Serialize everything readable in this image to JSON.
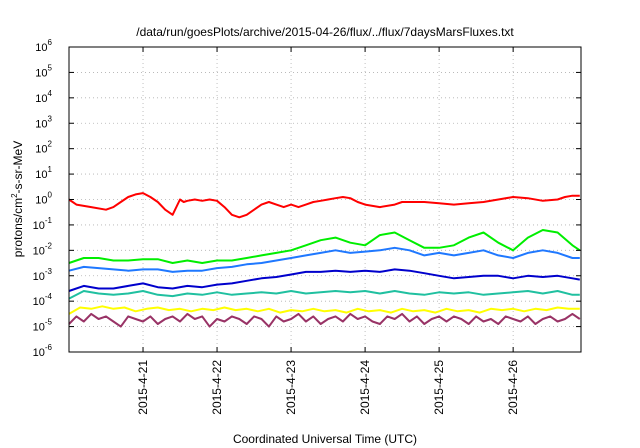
{
  "chart_data": {
    "type": "line",
    "title": "/data/run/goesPlots/archive/2015-04-26/flux/../flux/7daysMarsFluxes.txt",
    "xlabel": "Coordinated Universal Time (UTC)",
    "ylabel": {
      "base": "protons/cm",
      "sup": "2",
      "rest": "-s-sr-MeV"
    },
    "yscale": "log",
    "ylim": [
      -6,
      6
    ],
    "y_ticks": [
      {
        "base": "10",
        "exp": "-6",
        "v": -6
      },
      {
        "base": "10",
        "exp": "-5",
        "v": -5
      },
      {
        "base": "10",
        "exp": "-4",
        "v": -4
      },
      {
        "base": "10",
        "exp": "-3",
        "v": -3
      },
      {
        "base": "10",
        "exp": "-2",
        "v": -2
      },
      {
        "base": "10",
        "exp": "-1",
        "v": -1
      },
      {
        "base": "10",
        "exp": "0",
        "v": 0
      },
      {
        "base": "10",
        "exp": "1",
        "v": 1
      },
      {
        "base": "10",
        "exp": "2",
        "v": 2
      },
      {
        "base": "10",
        "exp": "3",
        "v": 3
      },
      {
        "base": "10",
        "exp": "4",
        "v": 4
      },
      {
        "base": "10",
        "exp": "5",
        "v": 5
      },
      {
        "base": "10",
        "exp": "6",
        "v": 6
      }
    ],
    "x_range_days": [
      "2015-04-20 00:00",
      "2015-04-26 22:00"
    ],
    "x_ticks": [
      "2015-4-21",
      "2015-4-22",
      "2015-4-23",
      "2015-4-24",
      "2015-4-25",
      "2015-4-26"
    ],
    "grid": true,
    "series": [
      {
        "color": "#ff0000",
        "x_days": [
          0,
          0.1,
          0.3,
          0.5,
          0.6,
          0.7,
          0.8,
          0.9,
          1.0,
          1.1,
          1.2,
          1.3,
          1.4,
          1.5,
          1.55,
          1.6,
          1.7,
          1.8,
          1.9,
          2.0,
          2.1,
          2.2,
          2.3,
          2.4,
          2.5,
          2.6,
          2.7,
          2.8,
          2.9,
          3.0,
          3.1,
          3.2,
          3.3,
          3.4,
          3.5,
          3.6,
          3.7,
          3.8,
          3.9,
          4.0,
          4.2,
          4.4,
          4.5,
          4.6,
          4.8,
          5.0,
          5.2,
          5.4,
          5.6,
          5.8,
          6.0,
          6.2,
          6.4,
          6.6,
          6.7,
          6.8,
          6.9
        ],
        "log_y": [
          0.0,
          -0.2,
          -0.3,
          -0.4,
          -0.3,
          -0.1,
          0.1,
          0.2,
          0.25,
          0.1,
          -0.1,
          -0.4,
          -0.6,
          0.0,
          -0.1,
          -0.05,
          0.0,
          -0.05,
          0.0,
          -0.05,
          -0.3,
          -0.6,
          -0.7,
          -0.6,
          -0.4,
          -0.2,
          -0.1,
          -0.2,
          -0.3,
          -0.2,
          -0.3,
          -0.2,
          -0.1,
          -0.05,
          0.0,
          0.05,
          0.1,
          0.05,
          -0.1,
          -0.2,
          -0.3,
          -0.2,
          -0.1,
          -0.1,
          -0.1,
          -0.15,
          -0.2,
          -0.15,
          -0.1,
          0.0,
          0.1,
          0.05,
          -0.05,
          0.0,
          0.1,
          0.15,
          0.15
        ]
      },
      {
        "color": "#00ee00",
        "x_days": [
          0,
          0.2,
          0.4,
          0.6,
          0.8,
          1.0,
          1.2,
          1.4,
          1.6,
          1.8,
          2.0,
          2.2,
          2.4,
          2.6,
          2.8,
          3.0,
          3.1,
          3.2,
          3.4,
          3.6,
          3.8,
          4.0,
          4.2,
          4.4,
          4.6,
          4.8,
          5.0,
          5.2,
          5.4,
          5.6,
          5.8,
          6.0,
          6.2,
          6.4,
          6.6,
          6.8,
          6.9
        ],
        "log_y": [
          -2.5,
          -2.3,
          -2.3,
          -2.4,
          -2.4,
          -2.35,
          -2.35,
          -2.5,
          -2.4,
          -2.5,
          -2.4,
          -2.4,
          -2.3,
          -2.2,
          -2.1,
          -2.0,
          -1.9,
          -1.8,
          -1.6,
          -1.5,
          -1.7,
          -1.8,
          -1.4,
          -1.3,
          -1.6,
          -1.9,
          -1.9,
          -1.8,
          -1.5,
          -1.3,
          -1.7,
          -2.0,
          -1.5,
          -1.2,
          -1.3,
          -1.8,
          -2.0
        ]
      },
      {
        "color": "#1f78ff",
        "x_days": [
          0,
          0.2,
          0.4,
          0.6,
          0.8,
          1.0,
          1.2,
          1.4,
          1.6,
          1.8,
          2.0,
          2.2,
          2.4,
          2.6,
          2.8,
          3.0,
          3.2,
          3.4,
          3.6,
          3.8,
          4.0,
          4.2,
          4.4,
          4.6,
          4.8,
          5.0,
          5.2,
          5.4,
          5.6,
          5.8,
          6.0,
          6.2,
          6.4,
          6.6,
          6.8,
          6.9
        ],
        "log_y": [
          -2.8,
          -2.65,
          -2.7,
          -2.75,
          -2.8,
          -2.75,
          -2.75,
          -2.85,
          -2.8,
          -2.8,
          -2.7,
          -2.65,
          -2.55,
          -2.5,
          -2.4,
          -2.3,
          -2.2,
          -2.1,
          -2.0,
          -2.1,
          -2.05,
          -2.0,
          -1.9,
          -2.0,
          -2.2,
          -2.1,
          -2.2,
          -2.1,
          -2.0,
          -2.2,
          -2.3,
          -2.1,
          -2.0,
          -2.1,
          -2.3,
          -2.3
        ]
      },
      {
        "color": "#0000cc",
        "x_days": [
          0,
          0.2,
          0.4,
          0.6,
          0.8,
          1.0,
          1.2,
          1.4,
          1.6,
          1.8,
          2.0,
          2.2,
          2.4,
          2.6,
          2.8,
          3.0,
          3.2,
          3.4,
          3.6,
          3.8,
          4.0,
          4.2,
          4.4,
          4.6,
          4.8,
          5.0,
          5.2,
          5.4,
          5.6,
          5.8,
          6.0,
          6.2,
          6.4,
          6.6,
          6.8,
          6.9
        ],
        "log_y": [
          -3.6,
          -3.4,
          -3.5,
          -3.5,
          -3.4,
          -3.3,
          -3.45,
          -3.5,
          -3.4,
          -3.45,
          -3.35,
          -3.3,
          -3.2,
          -3.1,
          -3.05,
          -2.95,
          -2.85,
          -2.85,
          -2.8,
          -2.85,
          -2.8,
          -2.85,
          -2.75,
          -2.8,
          -2.9,
          -3.0,
          -3.1,
          -3.05,
          -3.0,
          -3.0,
          -3.1,
          -3.0,
          -3.05,
          -3.0,
          -3.1,
          -3.15
        ]
      },
      {
        "color": "#20c0a0",
        "x_days": [
          0,
          0.2,
          0.4,
          0.6,
          0.8,
          1.0,
          1.2,
          1.4,
          1.6,
          1.8,
          2.0,
          2.2,
          2.4,
          2.6,
          2.8,
          3.0,
          3.2,
          3.4,
          3.6,
          3.8,
          4.0,
          4.2,
          4.4,
          4.6,
          4.8,
          5.0,
          5.2,
          5.4,
          5.6,
          5.8,
          6.0,
          6.2,
          6.4,
          6.6,
          6.8,
          6.9
        ],
        "log_y": [
          -3.9,
          -3.6,
          -3.7,
          -3.75,
          -3.7,
          -3.6,
          -3.75,
          -3.8,
          -3.7,
          -3.75,
          -3.65,
          -3.75,
          -3.7,
          -3.65,
          -3.7,
          -3.6,
          -3.7,
          -3.65,
          -3.6,
          -3.65,
          -3.6,
          -3.7,
          -3.6,
          -3.7,
          -3.75,
          -3.65,
          -3.7,
          -3.65,
          -3.75,
          -3.7,
          -3.65,
          -3.6,
          -3.7,
          -3.6,
          -3.75,
          -3.75
        ]
      },
      {
        "color": "#ffff00",
        "x_days": [
          0,
          0.15,
          0.3,
          0.45,
          0.6,
          0.75,
          0.9,
          1.05,
          1.2,
          1.35,
          1.5,
          1.65,
          1.8,
          1.95,
          2.1,
          2.25,
          2.4,
          2.55,
          2.7,
          2.85,
          3.0,
          3.15,
          3.3,
          3.45,
          3.6,
          3.75,
          3.9,
          4.05,
          4.2,
          4.35,
          4.5,
          4.65,
          4.8,
          4.95,
          5.1,
          5.25,
          5.4,
          5.55,
          5.7,
          5.85,
          6.0,
          6.15,
          6.3,
          6.45,
          6.6,
          6.75,
          6.9
        ],
        "log_y": [
          -4.5,
          -4.25,
          -4.3,
          -4.2,
          -4.3,
          -4.25,
          -4.4,
          -4.3,
          -4.25,
          -4.35,
          -4.3,
          -4.4,
          -4.3,
          -4.35,
          -4.25,
          -4.35,
          -4.3,
          -4.4,
          -4.3,
          -4.45,
          -4.35,
          -4.4,
          -4.3,
          -4.4,
          -4.35,
          -4.45,
          -4.3,
          -4.4,
          -4.35,
          -4.45,
          -4.3,
          -4.4,
          -4.35,
          -4.45,
          -4.3,
          -4.4,
          -4.35,
          -4.45,
          -4.3,
          -4.35,
          -4.3,
          -4.4,
          -4.3,
          -4.35,
          -4.25,
          -4.3,
          -4.3
        ]
      },
      {
        "color": "#993366",
        "x_days": [
          0,
          0.1,
          0.2,
          0.3,
          0.4,
          0.5,
          0.6,
          0.7,
          0.8,
          0.9,
          1.0,
          1.1,
          1.2,
          1.3,
          1.4,
          1.5,
          1.6,
          1.7,
          1.8,
          1.9,
          2.0,
          2.1,
          2.2,
          2.3,
          2.4,
          2.5,
          2.6,
          2.7,
          2.8,
          2.9,
          3.0,
          3.1,
          3.2,
          3.3,
          3.4,
          3.5,
          3.6,
          3.7,
          3.8,
          3.9,
          4.0,
          4.1,
          4.2,
          4.3,
          4.4,
          4.5,
          4.6,
          4.7,
          4.8,
          4.9,
          5.0,
          5.1,
          5.2,
          5.3,
          5.4,
          5.5,
          5.6,
          5.7,
          5.8,
          5.9,
          6.0,
          6.1,
          6.2,
          6.3,
          6.4,
          6.5,
          6.6,
          6.7,
          6.8,
          6.9
        ],
        "log_y": [
          -4.9,
          -4.6,
          -4.8,
          -4.5,
          -4.7,
          -4.6,
          -4.8,
          -5.0,
          -4.6,
          -4.7,
          -4.8,
          -4.6,
          -4.9,
          -4.7,
          -4.6,
          -4.8,
          -4.5,
          -4.7,
          -4.6,
          -5.0,
          -4.7,
          -4.8,
          -4.6,
          -4.7,
          -4.9,
          -4.6,
          -4.7,
          -5.0,
          -4.6,
          -4.8,
          -4.7,
          -4.5,
          -4.8,
          -4.6,
          -4.9,
          -4.7,
          -4.6,
          -4.8,
          -4.5,
          -4.7,
          -4.6,
          -4.8,
          -4.9,
          -4.6,
          -4.7,
          -4.5,
          -4.8,
          -4.6,
          -4.9,
          -4.7,
          -4.6,
          -4.8,
          -4.6,
          -4.7,
          -4.9,
          -4.6,
          -4.8,
          -4.7,
          -4.9,
          -4.6,
          -4.7,
          -4.8,
          -4.6,
          -4.9,
          -4.7,
          -4.6,
          -4.8,
          -4.7,
          -4.5,
          -4.7
        ]
      }
    ]
  }
}
